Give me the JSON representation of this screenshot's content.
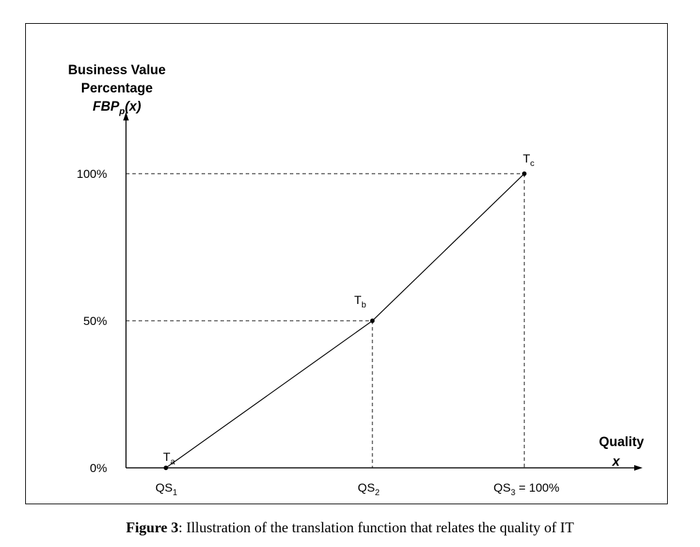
{
  "chart_data": {
    "type": "line",
    "ylabel_line1": "Business Value",
    "ylabel_line2": "Percentage",
    "ylabel_fn_main": "FBP",
    "ylabel_fn_sub": "p",
    "ylabel_fn_arg": "(x)",
    "xlabel_line1": "Quality",
    "xlabel_line2": "x",
    "x_ticks": [
      {
        "main": "QS",
        "sub": "1",
        "suffix": ""
      },
      {
        "main": "QS",
        "sub": "2",
        "suffix": ""
      },
      {
        "main": "QS",
        "sub": "3",
        "suffix": " = 100%"
      }
    ],
    "y_ticks": [
      "0%",
      "50%",
      "100%"
    ],
    "points": [
      {
        "main": "T",
        "sub": "a",
        "x": 1,
        "y": 0
      },
      {
        "main": "T",
        "sub": "b",
        "x": 2,
        "y": 50
      },
      {
        "main": "T",
        "sub": "c",
        "x": 3,
        "y": 100
      }
    ],
    "y_range": [
      0,
      100
    ],
    "grid": false,
    "guide_lines": "dashed"
  },
  "caption": {
    "label": "Figure 3",
    "text": ": Illustration of the translation function that relates the quality of IT"
  }
}
